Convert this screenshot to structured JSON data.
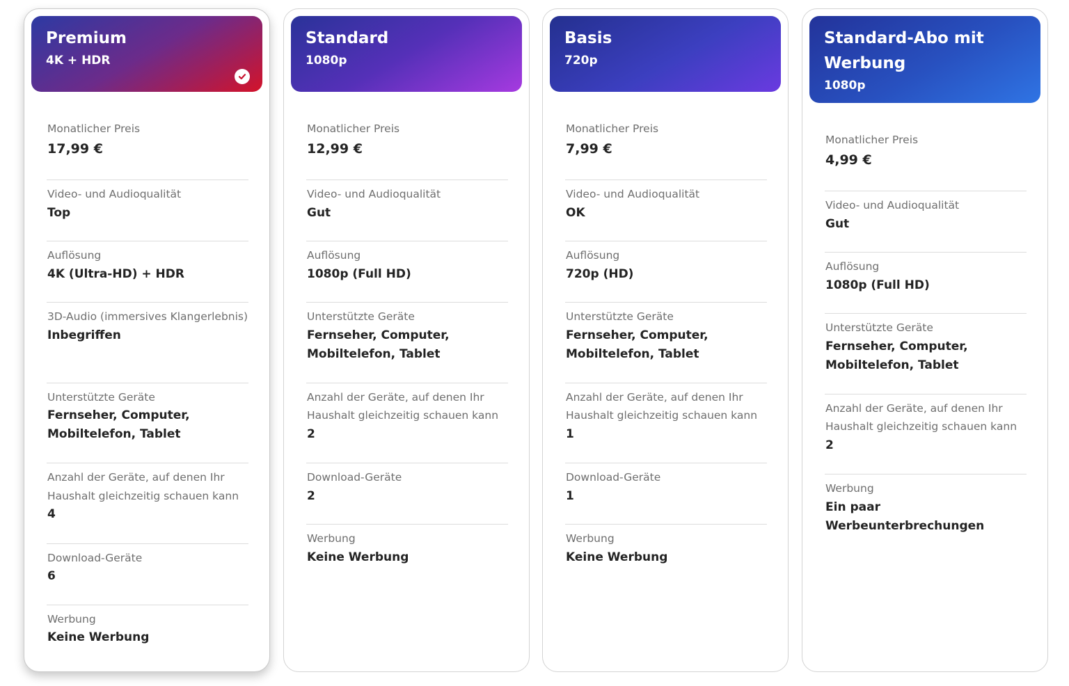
{
  "plans": [
    {
      "name": "Premium",
      "sub": "4K + HDR",
      "selected": true,
      "price_label": "Monatlicher Preis",
      "price": "17,99 €",
      "quality_label": "Video- und Audioqualität",
      "quality": "Top",
      "resolution_label": "Auflösung",
      "resolution": "4K (Ultra-HD) + HDR",
      "audio3d_label": "3D-Audio (immersives Klangerlebnis)",
      "audio3d": "Inbegriffen",
      "devices_label": "Unterstützte Geräte",
      "devices": "Fernseher, Computer, Mobiltelefon, Tablet",
      "streams_label": "Anzahl der Geräte, auf denen Ihr Haushalt gleichzeitig schauen kann",
      "streams": "4",
      "downloads_label": "Download-Geräte",
      "downloads": "6",
      "ads_label": "Werbung",
      "ads": "Keine Werbung"
    },
    {
      "name": "Standard",
      "sub": "1080p",
      "selected": false,
      "price_label": "Monatlicher Preis",
      "price": "12,99 €",
      "quality_label": "Video- und Audioqualität",
      "quality": "Gut",
      "resolution_label": "Auflösung",
      "resolution": "1080p (Full HD)",
      "devices_label": "Unterstützte Geräte",
      "devices": "Fernseher, Computer, Mobiltelefon, Tablet",
      "streams_label": "Anzahl der Geräte, auf denen Ihr Haushalt gleichzeitig schauen kann",
      "streams": "2",
      "downloads_label": "Download-Geräte",
      "downloads": "2",
      "ads_label": "Werbung",
      "ads": "Keine Werbung"
    },
    {
      "name": "Basis",
      "sub": "720p",
      "selected": false,
      "price_label": "Monatlicher Preis",
      "price": "7,99 €",
      "quality_label": "Video- und Audioqualität",
      "quality": "OK",
      "resolution_label": "Auflösung",
      "resolution": "720p (HD)",
      "devices_label": "Unterstützte Geräte",
      "devices": "Fernseher, Computer, Mobiltelefon, Tablet",
      "streams_label": "Anzahl der Geräte, auf denen Ihr Haushalt gleichzeitig schauen kann",
      "streams": "1",
      "downloads_label": "Download-Geräte",
      "downloads": "1",
      "ads_label": "Werbung",
      "ads": "Keine Werbung"
    },
    {
      "name": "Standard-Abo mit Werbung",
      "sub": "1080p",
      "selected": false,
      "price_label": "Monatlicher Preis",
      "price": "4,99 €",
      "quality_label": "Video- und Audioqualität",
      "quality": "Gut",
      "resolution_label": "Auflösung",
      "resolution": "1080p (Full HD)",
      "devices_label": "Unterstützte Geräte",
      "devices": "Fernseher, Computer, Mobiltelefon, Tablet",
      "streams_label": "Anzahl der Geräte, auf denen Ihr Haushalt gleichzeitig schauen kann",
      "streams": "2",
      "ads_label": "Werbung",
      "ads": "Ein paar Werbeunterbrechungen"
    }
  ],
  "icons": {
    "selected_check": "check-circle-icon"
  },
  "colors": {
    "premium_gradient_end": "#d3132a",
    "standard_gradient_end": "#a63ae0",
    "basis_gradient_end": "#6a3ae0",
    "ads_gradient_end": "#2f74e4",
    "check_mark": "#c8102e"
  }
}
